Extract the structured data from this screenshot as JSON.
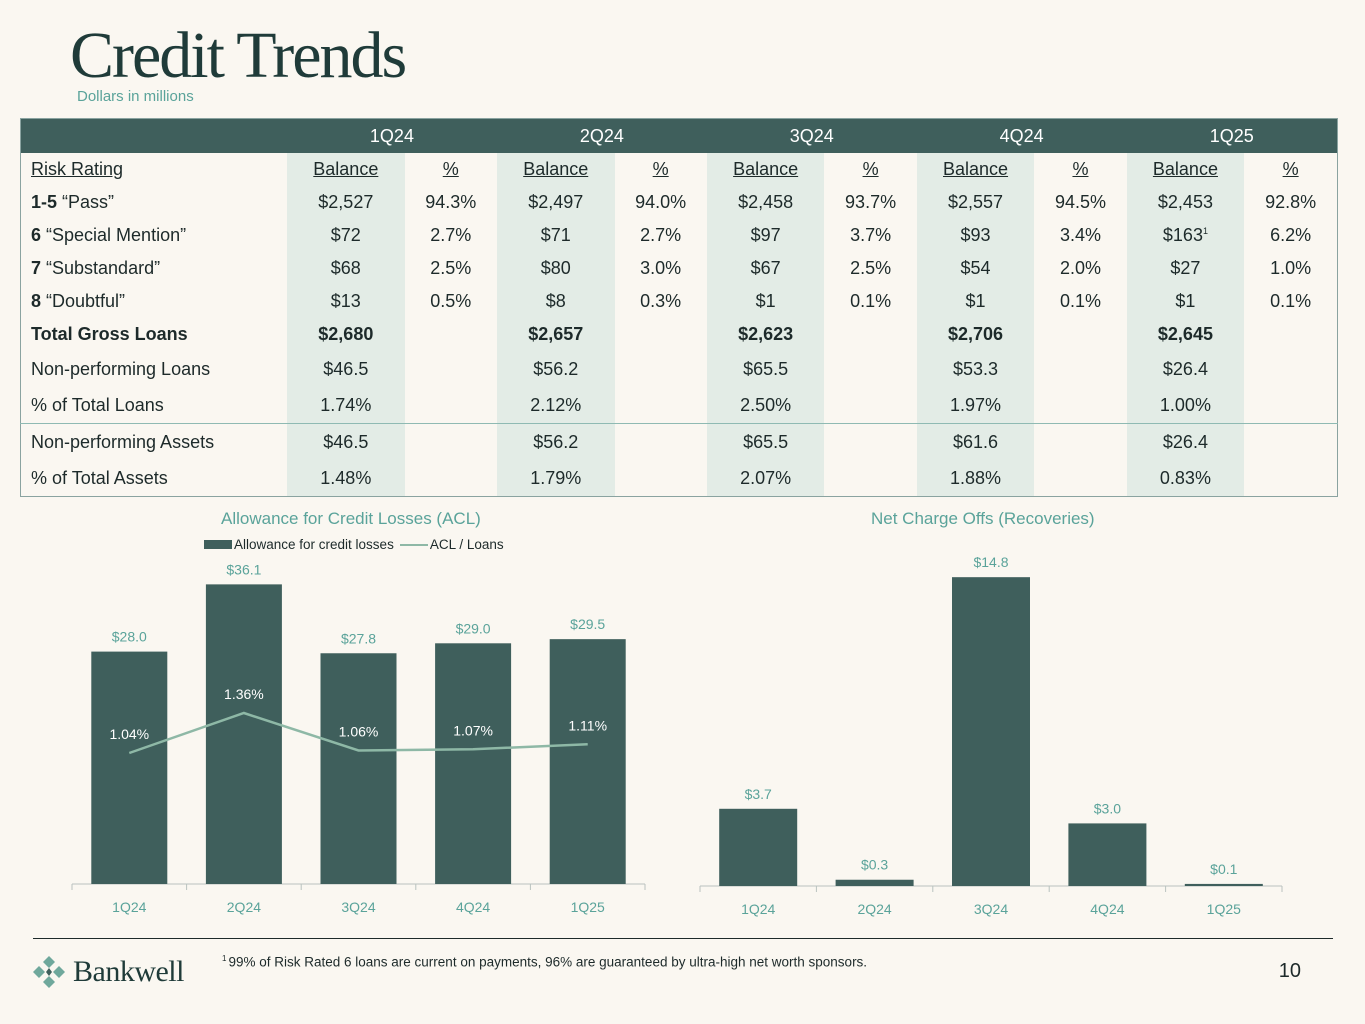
{
  "header": {
    "title": "Credit Trends",
    "subtitle": "Dollars in millions"
  },
  "table": {
    "quarters": [
      "1Q24",
      "2Q24",
      "3Q24",
      "4Q24",
      "1Q25"
    ],
    "subheaders": {
      "risk_rating": "Risk Rating",
      "balance": "Balance",
      "pct": "%"
    },
    "rating_rows": [
      {
        "num": "1-5",
        "name": " “Pass”",
        "cells": [
          [
            "$2,527",
            "94.3%"
          ],
          [
            "$2,497",
            "94.0%"
          ],
          [
            "$2,458",
            "93.7%"
          ],
          [
            "$2,557",
            "94.5%"
          ],
          [
            "$2,453",
            "92.8%"
          ]
        ]
      },
      {
        "num": "6",
        "name": " “Special Mention”",
        "cells": [
          [
            "$72",
            "2.7%"
          ],
          [
            "$71",
            "2.7%"
          ],
          [
            "$97",
            "3.7%"
          ],
          [
            "$93",
            "3.4%"
          ],
          [
            "$163",
            "6.2%"
          ]
        ],
        "footnote_mark": "1"
      },
      {
        "num": "7",
        "name": " “Substandard”",
        "cells": [
          [
            "$68",
            "2.5%"
          ],
          [
            "$80",
            "3.0%"
          ],
          [
            "$67",
            "2.5%"
          ],
          [
            "$54",
            "2.0%"
          ],
          [
            "$27",
            "1.0%"
          ]
        ]
      },
      {
        "num": "8",
        "name": " “Doubtful”",
        "cells": [
          [
            "$13",
            "0.5%"
          ],
          [
            "$8",
            "0.3%"
          ],
          [
            "$1",
            "0.1%"
          ],
          [
            "$1",
            "0.1%"
          ],
          [
            "$1",
            "0.1%"
          ]
        ]
      }
    ],
    "total_gross_loans": {
      "label": "Total Gross Loans",
      "values": [
        "$2,680",
        "$2,657",
        "$2,623",
        "$2,706",
        "$2,645"
      ]
    },
    "npl": {
      "label": "Non-performing Loans",
      "values": [
        "$46.5",
        "$56.2",
        "$65.5",
        "$53.3",
        "$26.4"
      ]
    },
    "pct_total_loans": {
      "label": "% of Total Loans",
      "values": [
        "1.74%",
        "2.12%",
        "2.50%",
        "1.97%",
        "1.00%"
      ]
    },
    "npa": {
      "label": "Non-performing Assets",
      "values": [
        "$46.5",
        "$56.2",
        "$65.5",
        "$61.6",
        "$26.4"
      ]
    },
    "pct_total_assets": {
      "label": "% of Total Assets",
      "values": [
        "1.48%",
        "1.79%",
        "2.07%",
        "1.88%",
        "0.83%"
      ]
    }
  },
  "colors": {
    "bar": "#3f5f5c",
    "line": "#8eb8a6",
    "accent_text": "#5aa39a",
    "header_bg": "#3f5f5c",
    "shade": "#e3ece6"
  },
  "chart_data": [
    {
      "type": "bar",
      "title": "Allowance for Credit Losses (ACL)",
      "categories": [
        "1Q24",
        "2Q24",
        "3Q24",
        "4Q24",
        "1Q25"
      ],
      "series": [
        {
          "name": "Allowance for credit losses",
          "type": "bar",
          "values": [
            28.0,
            36.1,
            27.8,
            29.0,
            29.5
          ],
          "labels": [
            "$28.0",
            "$36.1",
            "$27.8",
            "$29.0",
            "$29.5"
          ]
        },
        {
          "name": "ACL / Loans",
          "type": "line",
          "values": [
            1.04,
            1.36,
            1.06,
            1.07,
            1.11
          ],
          "labels": [
            "1.04%",
            "1.36%",
            "1.06%",
            "1.07%",
            "1.11%"
          ]
        }
      ],
      "legend": "top-center"
    },
    {
      "type": "bar",
      "title": "Net Charge Offs (Recoveries)",
      "categories": [
        "1Q24",
        "2Q24",
        "3Q24",
        "4Q24",
        "1Q25"
      ],
      "values": [
        3.7,
        0.3,
        14.8,
        3.0,
        0.1
      ],
      "labels": [
        "$3.7",
        "$0.3",
        "$14.8",
        "$3.0",
        "$0.1"
      ]
    }
  ],
  "footer": {
    "logo_text": "Bankwell",
    "footnote_mark": "1",
    "footnote": "99% of Risk Rated 6 loans are current on payments, 96% are guaranteed by ultra-high net worth sponsors.",
    "page_number": "10"
  }
}
